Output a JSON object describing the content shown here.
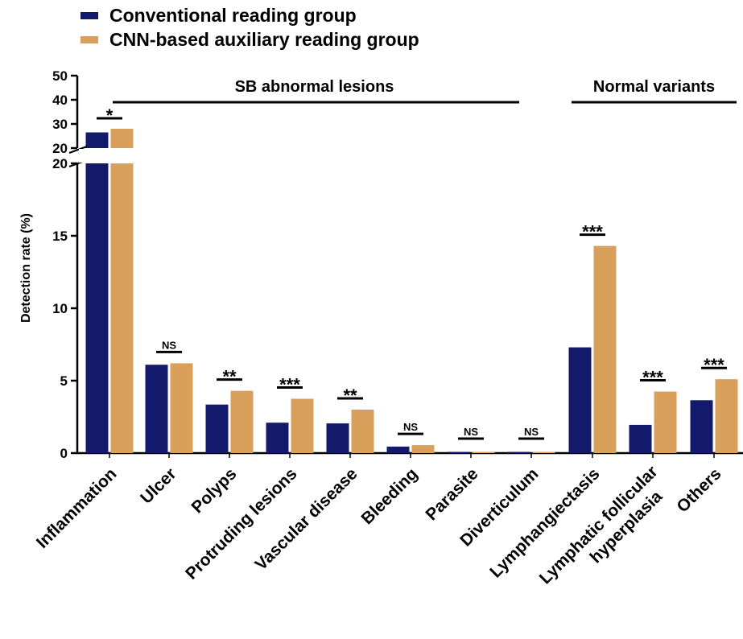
{
  "colors": {
    "conventional": "#141a6b",
    "cnn": "#d9a05b",
    "axis": "#000000"
  },
  "chart_data": {
    "type": "bar",
    "ylabel": "Detection rate (%)",
    "ylim_lower": [
      0,
      20
    ],
    "ylim_upper": [
      20,
      50
    ],
    "yticks_lower": [
      "0",
      "5",
      "10",
      "15",
      "20"
    ],
    "yticks_upper": [
      "20",
      "30",
      "40",
      "50"
    ],
    "categories": [
      "Inflammation",
      "Ulcer",
      "Polyps",
      "Protruding lesions",
      "Vascular disease",
      "Bleeding",
      "Parasite",
      "Diverticulum",
      "Lymphangiectasis",
      "Lymphatic follicular hyperplasia",
      "Others"
    ],
    "category_lines": [
      [
        "Inflammation"
      ],
      [
        "Ulcer"
      ],
      [
        "Polyps"
      ],
      [
        "Protruding lesions"
      ],
      [
        "Vascular disease"
      ],
      [
        "Bleeding"
      ],
      [
        "Parasite"
      ],
      [
        "Diverticulum"
      ],
      [
        "Lymphangiectasis"
      ],
      [
        "Lymphatic follicular",
        "hyperplasia"
      ],
      [
        "Others"
      ]
    ],
    "series": [
      {
        "name": "Conventional reading group",
        "values": [
          26.5,
          6.1,
          3.35,
          2.1,
          2.05,
          0.45,
          0.08,
          0.08,
          7.3,
          1.95,
          3.65
        ]
      },
      {
        "name": "CNN-based auxiliary reading group",
        "values": [
          28.0,
          6.2,
          4.3,
          3.75,
          3.0,
          0.55,
          0.08,
          0.08,
          14.3,
          4.25,
          5.1
        ]
      }
    ],
    "significance": [
      "*",
      "NS",
      "**",
      "***",
      "**",
      "NS",
      "NS",
      "NS",
      "***",
      "***",
      "***"
    ],
    "groups": [
      {
        "label": "SB abnormal lesions",
        "from": 0,
        "to": 7
      },
      {
        "label": "Normal variants",
        "from": 8,
        "to": 10
      }
    ],
    "legend_position": "top-left",
    "grid": false
  }
}
